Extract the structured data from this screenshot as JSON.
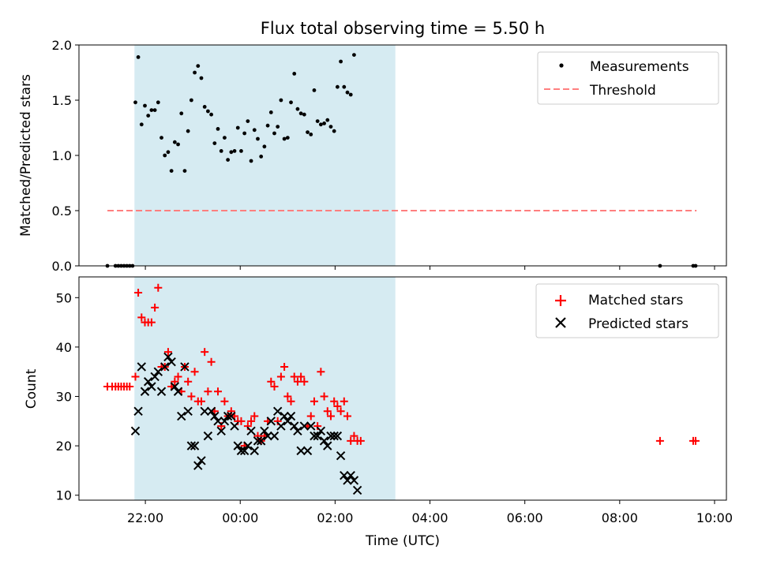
{
  "title": "Flux total observing time = 5.50 h",
  "colors": {
    "measurement": "#000000",
    "threshold": "#ff7f7f",
    "matched": "#ff0000",
    "predicted": "#000000",
    "observing_span": "#add8e6"
  },
  "chart_data": [
    {
      "type": "scatter",
      "panel": "top",
      "title": "Flux total observing time = 5.50 h",
      "xlabel": "",
      "ylabel": "Matched/Predicted stars",
      "x_unit": "hours relative to 00:00 UTC",
      "xlim": [
        -3.4,
        10.25
      ],
      "ylim": [
        0,
        2.0
      ],
      "yticks": [
        0.0,
        0.5,
        1.0,
        1.5,
        2.0
      ],
      "ytick_labels": [
        "0.0",
        "0.5",
        "1.0",
        "1.5",
        "2.0"
      ],
      "observing_span": [
        -2.23,
        3.27
      ],
      "legend": {
        "placement": "top-right",
        "entries": [
          "Measurements",
          "Threshold"
        ]
      },
      "threshold": {
        "name": "Threshold",
        "y": 0.5,
        "x_range": [
          -2.8,
          9.62
        ]
      },
      "series": [
        {
          "name": "Measurements",
          "marker": "dot",
          "points": [
            [
              -2.8,
              0.0
            ],
            [
              -2.63,
              0.0
            ],
            [
              -2.57,
              0.0
            ],
            [
              -2.51,
              0.0
            ],
            [
              -2.45,
              0.0
            ],
            [
              -2.39,
              0.0
            ],
            [
              -2.33,
              0.0
            ],
            [
              -2.27,
              0.0
            ],
            [
              -2.21,
              1.48
            ],
            [
              -2.15,
              1.89
            ],
            [
              -2.08,
              1.28
            ],
            [
              -2.01,
              1.45
            ],
            [
              -1.94,
              1.36
            ],
            [
              -1.87,
              1.41
            ],
            [
              -1.8,
              1.41
            ],
            [
              -1.73,
              1.48
            ],
            [
              -1.66,
              1.16
            ],
            [
              -1.59,
              1.0
            ],
            [
              -1.52,
              1.03
            ],
            [
              -1.45,
              0.86
            ],
            [
              -1.38,
              1.12
            ],
            [
              -1.31,
              1.1
            ],
            [
              -1.24,
              1.38
            ],
            [
              -1.17,
              0.86
            ],
            [
              -1.1,
              1.22
            ],
            [
              -1.03,
              1.5
            ],
            [
              -0.96,
              1.75
            ],
            [
              -0.89,
              1.81
            ],
            [
              -0.82,
              1.7
            ],
            [
              -0.75,
              1.44
            ],
            [
              -0.68,
              1.4
            ],
            [
              -0.61,
              1.37
            ],
            [
              -0.54,
              1.11
            ],
            [
              -0.47,
              1.24
            ],
            [
              -0.4,
              1.04
            ],
            [
              -0.33,
              1.16
            ],
            [
              -0.26,
              0.96
            ],
            [
              -0.19,
              1.03
            ],
            [
              -0.12,
              1.04
            ],
            [
              -0.05,
              1.25
            ],
            [
              0.02,
              1.04
            ],
            [
              0.09,
              1.2
            ],
            [
              0.16,
              1.31
            ],
            [
              0.23,
              0.95
            ],
            [
              0.3,
              1.23
            ],
            [
              0.37,
              1.15
            ],
            [
              0.44,
              0.99
            ],
            [
              0.51,
              1.08
            ],
            [
              0.58,
              1.27
            ],
            [
              0.65,
              1.39
            ],
            [
              0.72,
              1.2
            ],
            [
              0.79,
              1.26
            ],
            [
              0.86,
              1.5
            ],
            [
              0.93,
              1.15
            ],
            [
              1.0,
              1.16
            ],
            [
              1.07,
              1.48
            ],
            [
              1.14,
              1.74
            ],
            [
              1.21,
              1.42
            ],
            [
              1.28,
              1.38
            ],
            [
              1.35,
              1.37
            ],
            [
              1.42,
              1.21
            ],
            [
              1.49,
              1.19
            ],
            [
              1.56,
              1.59
            ],
            [
              1.63,
              1.31
            ],
            [
              1.7,
              1.28
            ],
            [
              1.77,
              1.29
            ],
            [
              1.84,
              1.32
            ],
            [
              1.91,
              1.26
            ],
            [
              1.98,
              1.22
            ],
            [
              2.05,
              1.62
            ],
            [
              2.12,
              1.85
            ],
            [
              2.19,
              1.62
            ],
            [
              2.26,
              1.57
            ],
            [
              2.33,
              1.55
            ],
            [
              2.4,
              1.91
            ],
            [
              8.85,
              0.0
            ],
            [
              9.55,
              0.0
            ],
            [
              9.6,
              0.0
            ]
          ]
        }
      ]
    },
    {
      "type": "scatter",
      "panel": "bottom",
      "xlabel": "Time (UTC)",
      "ylabel": "Count",
      "x_unit": "hours relative to 00:00 UTC",
      "xlim": [
        -3.4,
        10.25
      ],
      "ylim": [
        9,
        54.2
      ],
      "xticks": [
        -2,
        0,
        2,
        4,
        6,
        8,
        10
      ],
      "xtick_labels": [
        "22:00",
        "00:00",
        "02:00",
        "04:00",
        "06:00",
        "08:00",
        "10:00"
      ],
      "yticks": [
        10,
        20,
        30,
        40,
        50
      ],
      "ytick_labels": [
        "10",
        "20",
        "30",
        "40",
        "50"
      ],
      "observing_span": [
        -2.23,
        3.27
      ],
      "legend": {
        "placement": "top-right",
        "entries": [
          "Matched stars",
          "Predicted stars"
        ]
      },
      "series": [
        {
          "name": "Matched stars",
          "marker": "plus",
          "points": [
            [
              -2.8,
              32
            ],
            [
              -2.7,
              32
            ],
            [
              -2.63,
              32
            ],
            [
              -2.57,
              32
            ],
            [
              -2.51,
              32
            ],
            [
              -2.45,
              32
            ],
            [
              -2.39,
              32
            ],
            [
              -2.33,
              32
            ],
            [
              -2.21,
              34
            ],
            [
              -2.15,
              51
            ],
            [
              -2.08,
              46
            ],
            [
              -2.01,
              45
            ],
            [
              -1.94,
              45
            ],
            [
              -1.87,
              45
            ],
            [
              -1.8,
              48
            ],
            [
              -1.73,
              52
            ],
            [
              -1.66,
              36
            ],
            [
              -1.59,
              36
            ],
            [
              -1.52,
              39
            ],
            [
              -1.45,
              32
            ],
            [
              -1.38,
              33
            ],
            [
              -1.31,
              34
            ],
            [
              -1.24,
              31
            ],
            [
              -1.17,
              36
            ],
            [
              -1.1,
              33
            ],
            [
              -1.03,
              30
            ],
            [
              -0.96,
              35
            ],
            [
              -0.89,
              29
            ],
            [
              -0.82,
              29
            ],
            [
              -0.75,
              39
            ],
            [
              -0.68,
              31
            ],
            [
              -0.61,
              37
            ],
            [
              -0.54,
              27
            ],
            [
              -0.47,
              31
            ],
            [
              -0.4,
              24
            ],
            [
              -0.33,
              29
            ],
            [
              -0.26,
              26
            ],
            [
              -0.19,
              27
            ],
            [
              -0.12,
              26
            ],
            [
              -0.05,
              25
            ],
            [
              0.02,
              25
            ],
            [
              0.09,
              20
            ],
            [
              0.16,
              24
            ],
            [
              0.23,
              25
            ],
            [
              0.3,
              26
            ],
            [
              0.37,
              22
            ],
            [
              0.44,
              21
            ],
            [
              0.51,
              22
            ],
            [
              0.58,
              25
            ],
            [
              0.65,
              33
            ],
            [
              0.72,
              32
            ],
            [
              0.79,
              25
            ],
            [
              0.86,
              34
            ],
            [
              0.93,
              36
            ],
            [
              1.0,
              30
            ],
            [
              1.07,
              29
            ],
            [
              1.14,
              34
            ],
            [
              1.21,
              33
            ],
            [
              1.28,
              34
            ],
            [
              1.35,
              33
            ],
            [
              1.42,
              24
            ],
            [
              1.49,
              26
            ],
            [
              1.56,
              29
            ],
            [
              1.63,
              24
            ],
            [
              1.7,
              35
            ],
            [
              1.77,
              30
            ],
            [
              1.84,
              27
            ],
            [
              1.91,
              26
            ],
            [
              1.98,
              29
            ],
            [
              2.05,
              28
            ],
            [
              2.12,
              27
            ],
            [
              2.19,
              29
            ],
            [
              2.26,
              26
            ],
            [
              2.33,
              21
            ],
            [
              2.4,
              22
            ],
            [
              2.47,
              21
            ],
            [
              2.54,
              21
            ],
            [
              8.85,
              21
            ],
            [
              9.55,
              21
            ],
            [
              9.6,
              21
            ]
          ]
        },
        {
          "name": "Predicted stars",
          "marker": "cross",
          "points": [
            [
              -2.21,
              23
            ],
            [
              -2.15,
              27
            ],
            [
              -2.08,
              36
            ],
            [
              -2.01,
              31
            ],
            [
              -1.94,
              33
            ],
            [
              -1.87,
              32
            ],
            [
              -1.8,
              34
            ],
            [
              -1.73,
              35
            ],
            [
              -1.66,
              31
            ],
            [
              -1.59,
              36
            ],
            [
              -1.52,
              38
            ],
            [
              -1.45,
              37
            ],
            [
              -1.38,
              32
            ],
            [
              -1.31,
              31
            ],
            [
              -1.24,
              26
            ],
            [
              -1.17,
              36
            ],
            [
              -1.1,
              27
            ],
            [
              -1.03,
              20
            ],
            [
              -0.96,
              20
            ],
            [
              -0.89,
              16
            ],
            [
              -0.82,
              17
            ],
            [
              -0.75,
              27
            ],
            [
              -0.68,
              22
            ],
            [
              -0.61,
              27
            ],
            [
              -0.54,
              26
            ],
            [
              -0.47,
              25
            ],
            [
              -0.4,
              23
            ],
            [
              -0.33,
              25
            ],
            [
              -0.26,
              26
            ],
            [
              -0.19,
              26
            ],
            [
              -0.12,
              24
            ],
            [
              -0.05,
              20
            ],
            [
              0.02,
              19
            ],
            [
              0.09,
              19
            ],
            [
              0.16,
              20
            ],
            [
              0.23,
              23
            ],
            [
              0.3,
              19
            ],
            [
              0.37,
              21
            ],
            [
              0.44,
              21
            ],
            [
              0.51,
              23
            ],
            [
              0.58,
              22
            ],
            [
              0.65,
              25
            ],
            [
              0.72,
              22
            ],
            [
              0.79,
              27
            ],
            [
              0.86,
              24
            ],
            [
              0.93,
              26
            ],
            [
              1.0,
              25
            ],
            [
              1.07,
              26
            ],
            [
              1.14,
              24
            ],
            [
              1.21,
              23
            ],
            [
              1.28,
              19
            ],
            [
              1.35,
              24
            ],
            [
              1.42,
              19
            ],
            [
              1.49,
              24
            ],
            [
              1.56,
              22
            ],
            [
              1.63,
              22
            ],
            [
              1.7,
              23
            ],
            [
              1.77,
              21
            ],
            [
              1.84,
              20
            ],
            [
              1.91,
              22
            ],
            [
              1.98,
              22
            ],
            [
              2.05,
              22
            ],
            [
              2.12,
              18
            ],
            [
              2.19,
              14
            ],
            [
              2.26,
              13
            ],
            [
              2.33,
              14
            ],
            [
              2.4,
              13
            ],
            [
              2.47,
              11
            ]
          ]
        }
      ]
    }
  ]
}
